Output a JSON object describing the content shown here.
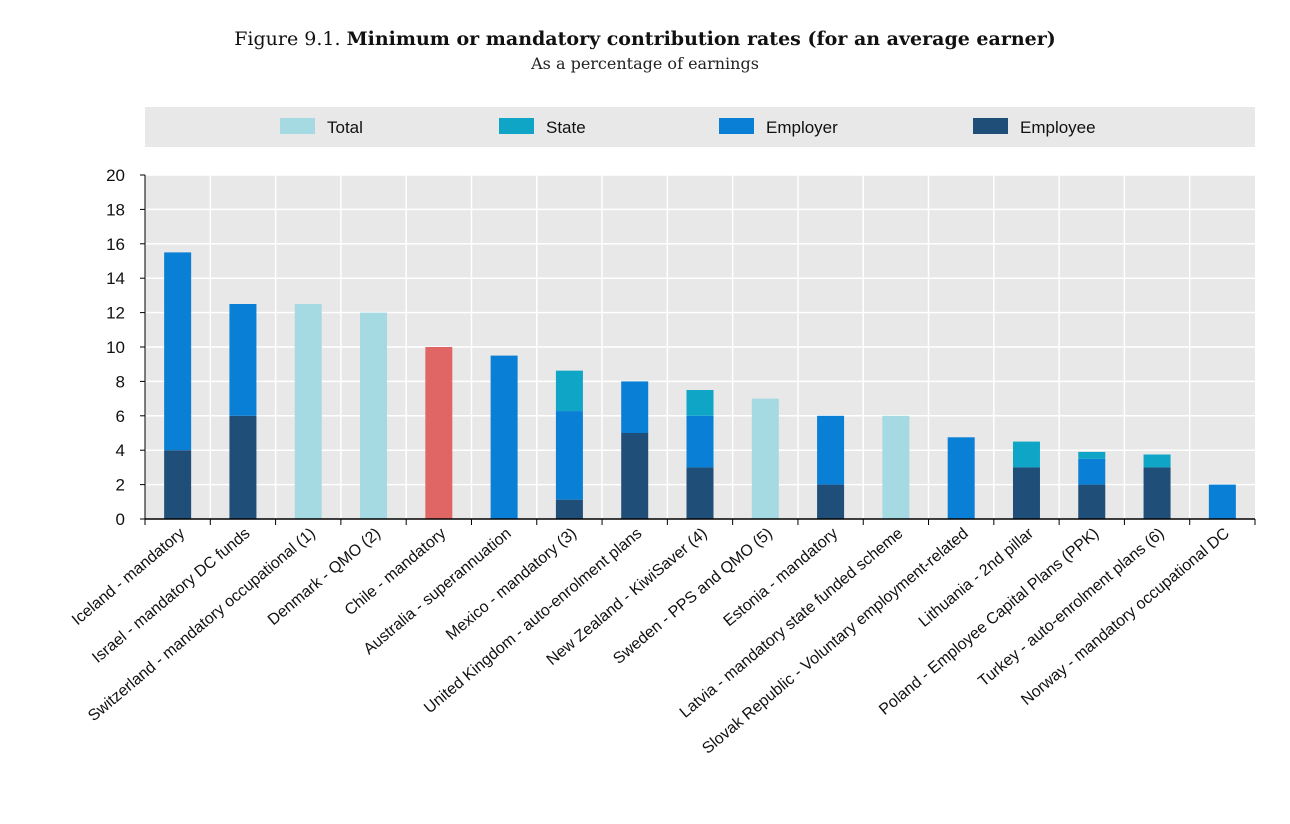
{
  "figure": {
    "number": "Figure 9.1.",
    "title": "Minimum or mandatory contribution rates (for an average earner)",
    "subtitle": "As a percentage of earnings"
  },
  "colors": {
    "Total": "#a5dae3",
    "State": "#0ea5c6",
    "Employer": "#0a7fd6",
    "Employee": "#1f4e79",
    "highlight": "#e06666",
    "plot_bg": "#e8e8e8",
    "legend_bg": "#e8e8e8",
    "grid": "#ffffff"
  },
  "chart_data": {
    "type": "bar",
    "stacked": true,
    "title": "Minimum or mandatory contribution rates (for an average earner)",
    "subtitle": "As a percentage of earnings",
    "xlabel": "",
    "ylabel": "",
    "ylim": [
      0,
      20
    ],
    "yticks": [
      0,
      2,
      4,
      6,
      8,
      10,
      12,
      14,
      16,
      18,
      20
    ],
    "grid": true,
    "legend_position": "top",
    "legend": [
      "Total",
      "State",
      "Employer",
      "Employee"
    ],
    "categories": [
      "Iceland - mandatory",
      "Israel - mandatory DC funds",
      "Switzerland - mandatory occupational (1)",
      "Denmark - QMO (2)",
      "Chile - mandatory",
      "Australia - superannuation",
      "Mexico - mandatory (3)",
      "United Kingdom - auto-enrolment plans",
      "New Zealand - KiwiSaver (4)",
      "Sweden - PPS and QMO (5)",
      "Estonia - mandatory",
      "Latvia - mandatory state funded scheme",
      "Slovak Republic - Voluntary employment-related",
      "Lithuania - 2nd pillar",
      "Poland - Employee Capital Plans (PPK)",
      "Turkey - auto-enrolment plans (6)",
      "Norway - mandatory occupational DC"
    ],
    "highlight_category": "Chile - mandatory",
    "series": [
      {
        "name": "Employee",
        "values": [
          4,
          6,
          0,
          0,
          0,
          0,
          1.125,
          5,
          3,
          0,
          2,
          0,
          0,
          3,
          2,
          3,
          0
        ]
      },
      {
        "name": "Employer",
        "values": [
          11.5,
          6.5,
          0,
          0,
          0,
          9.5,
          5.15,
          3,
          3,
          0,
          4,
          0,
          4.75,
          0,
          1.5,
          0,
          2
        ]
      },
      {
        "name": "State",
        "values": [
          0,
          0,
          0,
          0,
          0,
          0,
          2.35,
          0,
          1.5,
          0,
          0,
          0,
          0,
          1.5,
          0.4,
          0.75,
          0
        ]
      },
      {
        "name": "Total",
        "values": [
          0,
          0,
          12.5,
          12,
          10,
          0,
          0,
          0,
          0,
          7,
          0,
          6,
          0,
          0,
          0,
          0,
          0
        ]
      }
    ]
  }
}
